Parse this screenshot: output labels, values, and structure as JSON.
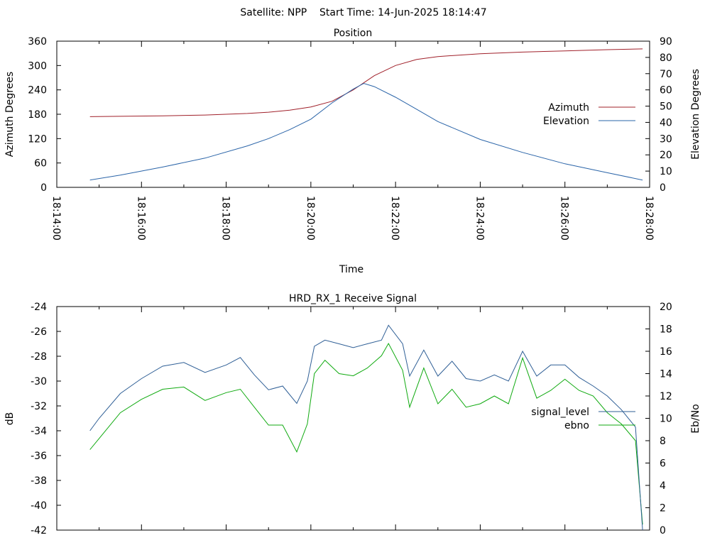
{
  "header": "Satellite: NPP    Start Time: 14-Jun-2025 18:14:47",
  "colors": {
    "azimuth": "#a0202a",
    "elevation": "#2a64a8",
    "signal_level": "#2f5f96",
    "ebno": "#10aa10",
    "axis": "#000000"
  },
  "chart_data": [
    {
      "id": "position",
      "type": "line",
      "title": "Position",
      "xlabel": "Time",
      "ylabel": "Azimuth Degrees",
      "y2label": "Elevation Degrees",
      "ylim": [
        0,
        360
      ],
      "y2lim": [
        0,
        90
      ],
      "x_tick_labels": [
        "18:14:00",
        "18:16:00",
        "18:18:00",
        "18:20:00",
        "18:22:00",
        "18:24:00",
        "18:26:00",
        "18:28:00"
      ],
      "y_tick_labels": [
        "0",
        "60",
        "120",
        "180",
        "240",
        "300",
        "360"
      ],
      "y2_tick_labels": [
        "0",
        "10",
        "20",
        "30",
        "40",
        "50",
        "60",
        "70",
        "80",
        "90"
      ],
      "legend_position": "right",
      "series": [
        {
          "name": "Azimuth",
          "axis": "y",
          "x": [
            "18:14:47",
            "18:15:30",
            "18:16:30",
            "18:17:30",
            "18:18:30",
            "18:19:00",
            "18:19:30",
            "18:20:00",
            "18:20:30",
            "18:21:00",
            "18:21:30",
            "18:22:00",
            "18:22:30",
            "18:23:00",
            "18:24:00",
            "18:25:00",
            "18:26:00",
            "18:27:00",
            "18:27:50"
          ],
          "values": [
            174,
            175,
            176,
            178,
            182,
            185,
            190,
            198,
            212,
            240,
            275,
            300,
            315,
            322,
            329,
            333,
            336,
            339,
            341
          ]
        },
        {
          "name": "Elevation",
          "axis": "y2",
          "x": [
            "18:14:47",
            "18:15:30",
            "18:16:30",
            "18:17:30",
            "18:18:30",
            "18:19:00",
            "18:19:30",
            "18:20:00",
            "18:20:30",
            "18:21:00",
            "18:21:15",
            "18:21:30",
            "18:22:00",
            "18:22:30",
            "18:23:00",
            "18:24:00",
            "18:25:00",
            "18:26:00",
            "18:27:00",
            "18:27:50"
          ],
          "values": [
            4.5,
            7.5,
            12.5,
            18,
            25.5,
            30,
            35.5,
            42,
            52,
            60.5,
            64,
            62,
            55.5,
            48,
            40.5,
            29.5,
            21.5,
            14.5,
            9,
            4.5
          ]
        }
      ]
    },
    {
      "id": "receive_signal",
      "type": "line",
      "title": "HRD_RX_1 Receive Signal",
      "ylabel": "dB",
      "y2label": "Eb/No",
      "ylim": [
        -42,
        -24
      ],
      "y2lim": [
        0,
        20
      ],
      "y_tick_labels": [
        "-42",
        "-40",
        "-38",
        "-36",
        "-34",
        "-32",
        "-30",
        "-28",
        "-26",
        "-24"
      ],
      "y2_tick_labels": [
        "0",
        "2",
        "4",
        "6",
        "8",
        "10",
        "12",
        "14",
        "16",
        "18",
        "20"
      ],
      "legend_position": "right",
      "series": [
        {
          "name": "signal_level",
          "axis": "y",
          "x": [
            "18:14:47",
            "18:15:00",
            "18:15:30",
            "18:16:00",
            "18:16:30",
            "18:17:00",
            "18:17:30",
            "18:18:00",
            "18:18:20",
            "18:18:40",
            "18:19:00",
            "18:19:20",
            "18:19:40",
            "18:19:55",
            "18:20:05",
            "18:20:20",
            "18:20:40",
            "18:21:00",
            "18:21:20",
            "18:21:40",
            "18:21:50",
            "18:22:10",
            "18:22:20",
            "18:22:40",
            "18:23:00",
            "18:23:20",
            "18:23:40",
            "18:24:00",
            "18:24:20",
            "18:24:40",
            "18:25:00",
            "18:25:20",
            "18:25:40",
            "18:26:00",
            "18:26:20",
            "18:26:40",
            "18:27:00",
            "18:27:20",
            "18:27:40",
            "18:27:50"
          ],
          "values": [
            -34,
            -33,
            -31,
            -29.8,
            -28.8,
            -28.5,
            -29.3,
            -28.7,
            -28.1,
            -29.5,
            -30.7,
            -30.4,
            -31.8,
            -30.0,
            -27.2,
            -26.7,
            -27.0,
            -27.3,
            -27.0,
            -26.7,
            -25.5,
            -27.0,
            -29.6,
            -27.5,
            -29.6,
            -28.4,
            -29.8,
            -30.0,
            -29.5,
            -30.0,
            -27.6,
            -29.6,
            -28.7,
            -28.7,
            -29.7,
            -30.4,
            -31.2,
            -32.3,
            -33.7,
            -42.0
          ]
        },
        {
          "name": "ebno",
          "axis": "y2",
          "x": [
            "18:14:47",
            "18:15:00",
            "18:15:30",
            "18:16:00",
            "18:16:30",
            "18:17:00",
            "18:17:30",
            "18:18:00",
            "18:18:20",
            "18:18:40",
            "18:19:00",
            "18:19:20",
            "18:19:40",
            "18:19:55",
            "18:20:05",
            "18:20:20",
            "18:20:40",
            "18:21:00",
            "18:21:20",
            "18:21:40",
            "18:21:50",
            "18:22:10",
            "18:22:20",
            "18:22:40",
            "18:23:00",
            "18:23:20",
            "18:23:40",
            "18:24:00",
            "18:24:20",
            "18:24:40",
            "18:25:00",
            "18:25:20",
            "18:25:40",
            "18:26:00",
            "18:26:20",
            "18:26:40",
            "18:27:00",
            "18:27:20",
            "18:27:40",
            "18:27:50"
          ],
          "values": [
            7.2,
            8.2,
            10.5,
            11.7,
            12.6,
            12.8,
            11.6,
            12.3,
            12.6,
            11.0,
            9.4,
            9.4,
            7.0,
            9.5,
            14.0,
            15.2,
            14.0,
            13.8,
            14.5,
            15.6,
            16.7,
            14.3,
            11.0,
            14.5,
            11.3,
            12.6,
            11.0,
            11.3,
            12.0,
            11.3,
            15.4,
            11.8,
            12.5,
            13.5,
            12.5,
            12.0,
            10.5,
            9.5,
            8.0,
            0.5
          ]
        }
      ]
    }
  ]
}
